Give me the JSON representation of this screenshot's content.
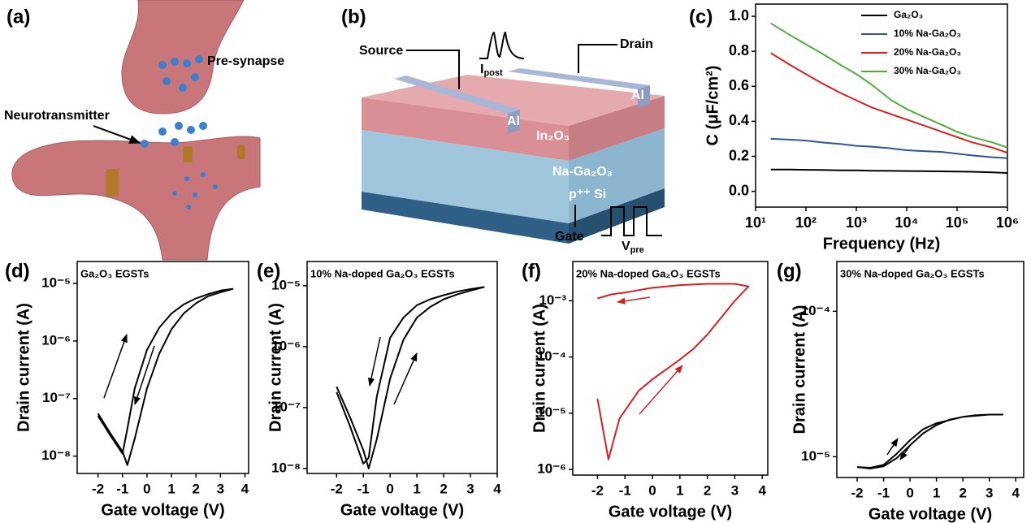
{
  "diagrams": {
    "a": {
      "label": "(a)",
      "pre": "Pre-synapse",
      "nt": "Neurotransmitter"
    },
    "b": {
      "label": "(b)",
      "source": "Source",
      "drain": "Drain",
      "i_post": [
        "I",
        "post"
      ],
      "al_left": "Al",
      "al_right": "Al",
      "layer1": "In₂O₃",
      "layer2": "Na-Ga₂O₃",
      "layer3": "p⁺⁺ Si",
      "gate": "Gate",
      "v_pre": [
        "V",
        "pre"
      ]
    }
  },
  "chart_data": [
    {
      "type": "line",
      "label": "(c)",
      "xlabel": "Frequency (Hz)",
      "ylabel": "C (μF/cm²)",
      "log_x": true,
      "legend": "upper right",
      "x": [
        20,
        50,
        100,
        200,
        500,
        1000,
        2000,
        5000,
        10000,
        20000,
        50000,
        100000,
        200000,
        500000,
        1000000
      ],
      "series": [
        {
          "name": "Ga₂O₃",
          "color": "#000000",
          "values": [
            0.125,
            0.125,
            0.123,
            0.122,
            0.12,
            0.12,
            0.118,
            0.117,
            0.116,
            0.115,
            0.114,
            0.113,
            0.112,
            0.108,
            0.105
          ]
        },
        {
          "name": "10% Na-Ga₂O₃",
          "color": "#2e5597",
          "values": [
            0.3,
            0.295,
            0.29,
            0.28,
            0.27,
            0.26,
            0.255,
            0.245,
            0.235,
            0.23,
            0.225,
            0.215,
            0.205,
            0.195,
            0.19
          ]
        },
        {
          "name": "20% Na-Ga₂O₃",
          "color": "#d62020",
          "values": [
            0.79,
            0.72,
            0.67,
            0.62,
            0.56,
            0.52,
            0.48,
            0.44,
            0.41,
            0.38,
            0.34,
            0.31,
            0.28,
            0.25,
            0.22
          ]
        },
        {
          "name": "30% Na-Ga₂O₃",
          "color": "#4cae3c",
          "values": [
            0.96,
            0.89,
            0.84,
            0.79,
            0.72,
            0.67,
            0.61,
            0.52,
            0.47,
            0.43,
            0.38,
            0.34,
            0.31,
            0.28,
            0.25
          ]
        }
      ],
      "xlim": [
        10,
        1000000
      ],
      "xticks": [
        {
          "value": 10,
          "label": "10¹"
        },
        {
          "value": 100,
          "label": "10²"
        },
        {
          "value": 1000,
          "label": "10³"
        },
        {
          "value": 10000,
          "label": "10⁴"
        },
        {
          "value": 100000,
          "label": "10⁵"
        },
        {
          "value": 1000000,
          "label": "10⁶"
        }
      ],
      "ylim": [
        -0.09,
        1.07
      ],
      "yticks": [
        {
          "value": 0,
          "label": "0.0"
        },
        {
          "value": 0.2,
          "label": "0.2"
        },
        {
          "value": 0.4,
          "label": "0.4"
        },
        {
          "value": 0.6,
          "label": "0.6"
        },
        {
          "value": 0.8,
          "label": "0.8"
        },
        {
          "value": 1,
          "label": "1.0"
        }
      ]
    },
    {
      "type": "line",
      "label": "(d)",
      "title": "Ga₂O₃ EGSTs",
      "xlabel": "Gate voltage (V)",
      "ylabel": "Drain current (A)",
      "log_y": true,
      "x": [
        -2,
        -1.5,
        -1,
        -0.8,
        -0.5,
        0,
        0.5,
        1,
        1.5,
        2,
        2.5,
        3,
        3.5,
        3,
        2.5,
        2,
        1.5,
        1,
        0.5,
        0,
        -0.5,
        -0.8,
        -1,
        -1.5,
        -2
      ],
      "series": [
        {
          "color": "#000000",
          "values": [
            5.5e-08,
            2.5e-08,
            1.2e-08,
            7e-09,
            2e-08,
            1.5e-07,
            6e-07,
            1.6e-06,
            3e-06,
            4.5e-06,
            6e-06,
            7e-06,
            8e-06,
            7.5e-06,
            6.5e-06,
            5.5e-06,
            4.3e-06,
            3e-06,
            1.7e-06,
            7e-07,
            1.5e-07,
            3e-08,
            1.1e-08,
            2.3e-08,
            5e-08
          ]
        }
      ],
      "xlim": [
        -2.85,
        4.15
      ],
      "xticks": [
        -2,
        -1,
        0,
        1,
        2,
        3,
        4
      ],
      "ylim": [
        5e-09,
        2.4e-05
      ],
      "yticks": [
        {
          "value": 1e-08,
          "label": "10⁻⁸"
        },
        {
          "value": 1e-07,
          "label": "10⁻⁷"
        },
        {
          "value": 1e-06,
          "label": "10⁻⁶"
        },
        {
          "value": 1e-05,
          "label": "10⁻⁵"
        }
      ]
    },
    {
      "type": "line",
      "label": "(e)",
      "title": "10% Na-doped Ga₂O₃ EGSTs",
      "xlabel": "Gate voltage (V)",
      "ylabel": "Drain current (A)",
      "log_y": true,
      "x": [
        -2,
        -1.5,
        -1,
        -0.8,
        -0.5,
        0,
        0.5,
        1,
        1.5,
        2,
        2.5,
        3,
        3.5,
        3,
        2.5,
        2,
        1.5,
        1,
        0.5,
        0,
        -0.5,
        -0.8,
        -1,
        -1.5,
        -2
      ],
      "series": [
        {
          "color": "#000000",
          "values": [
            2.2e-07,
            7e-08,
            2e-08,
            1e-08,
            3e-08,
            3e-07,
            1.3e-06,
            3e-06,
            4.5e-06,
            6e-06,
            7.2e-06,
            8.3e-06,
            9.5e-06,
            8.8e-06,
            8e-06,
            7e-06,
            6e-06,
            4.8e-06,
            3e-06,
            1.4e-06,
            1.5e-07,
            1.5e-08,
            1.2e-08,
            5e-08,
            1.8e-07
          ]
        }
      ],
      "xlim": [
        -3.1,
        4.0
      ],
      "xticks": [
        -2,
        -1,
        0,
        1,
        2,
        3,
        4
      ],
      "ylim": [
        8.3e-09,
        2.5e-05
      ],
      "yticks": [
        {
          "value": 1e-08,
          "label": "10⁻⁸"
        },
        {
          "value": 1e-07,
          "label": "10⁻⁷"
        },
        {
          "value": 1e-06,
          "label": "10⁻⁶"
        },
        {
          "value": 1e-05,
          "label": "10⁻⁵"
        }
      ]
    },
    {
      "type": "line",
      "label": "(f)",
      "title": "20% Na-doped Ga₂O₃ EGSTs",
      "xlabel": "Gate voltage (V)",
      "ylabel": "Drain current (A)",
      "log_y": true,
      "x": [
        -2,
        -1.6,
        -1.2,
        -0.5,
        0,
        0.5,
        1,
        1.5,
        2,
        2.5,
        3,
        3.5,
        3,
        2,
        1,
        0,
        -1,
        -1.5,
        -2
      ],
      "series": [
        {
          "color": "#d62020",
          "values": [
            1.8e-05,
            1.5e-06,
            8e-06,
            2.5e-05,
            4e-05,
            6e-05,
            9e-05,
            0.00014,
            0.00025,
            0.0005,
            0.001,
            0.0018,
            0.002,
            0.002,
            0.0019,
            0.0017,
            0.0014,
            0.0013,
            0.0011
          ]
        }
      ],
      "xlim": [
        -2.9,
        4.2
      ],
      "xticks": [
        -2,
        -1,
        0,
        1,
        2,
        3,
        4
      ],
      "ylim": [
        7.9e-07,
        0.005
      ],
      "yticks": [
        {
          "value": 1e-06,
          "label": "10⁻⁶"
        },
        {
          "value": 1e-05,
          "label": "10⁻⁵"
        },
        {
          "value": 0.0001,
          "label": "10⁻⁴"
        },
        {
          "value": 0.001,
          "label": "10⁻³"
        }
      ]
    },
    {
      "type": "line",
      "label": "(g)",
      "title": "30% Na-doped Ga₂O₃ EGSTs",
      "xlabel": "Gate voltage (V)",
      "ylabel": "Drain current (A)",
      "log_y": true,
      "x": [
        -2,
        -1.5,
        -1,
        -0.5,
        0,
        0.5,
        1,
        1.5,
        2,
        2.5,
        3,
        3.5,
        3,
        2,
        1,
        0.5,
        0,
        -0.5,
        -1,
        -1.5,
        -2
      ],
      "series": [
        {
          "color": "#000000",
          "values": [
            8.5e-06,
            8.3e-06,
            8.6e-06,
            9.8e-06,
            1.2e-05,
            1.45e-05,
            1.65e-05,
            1.8e-05,
            1.88e-05,
            1.93e-05,
            1.95e-05,
            1.95e-05,
            1.95e-05,
            1.88e-05,
            1.7e-05,
            1.55e-05,
            1.3e-05,
            1.05e-05,
            8.8e-06,
            8.4e-06,
            8.5e-06
          ]
        }
      ],
      "xlim": [
        -2.77,
        4.3
      ],
      "xticks": [
        -2,
        -1,
        0,
        1,
        2,
        3,
        4
      ],
      "ylim": [
        7.2e-06,
        0.00022
      ],
      "yticks": [
        {
          "value": 1e-05,
          "label": "10⁻⁵"
        },
        {
          "value": 0.0001,
          "label": "10⁻⁴"
        }
      ]
    }
  ]
}
